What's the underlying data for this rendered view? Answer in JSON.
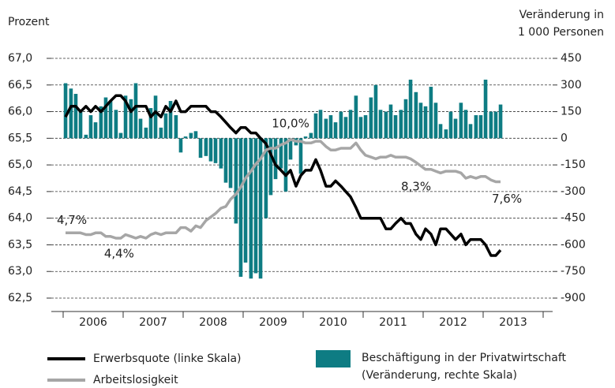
{
  "chart_data": {
    "type": "combo",
    "ylabel": "Prozent",
    "y2label": "Veränderung in 1 000 Personen",
    "categories": [
      "2006",
      "2007",
      "2008",
      "2009",
      "2010",
      "2011",
      "2012",
      "2013"
    ],
    "xlim": [
      2006,
      2014
    ],
    "xticks": [
      2006,
      2007,
      2008,
      2009,
      2010,
      2011,
      2012,
      2013,
      2014
    ],
    "ylim": [
      62.5,
      67.0
    ],
    "yticks": [
      {
        "value": 62.5,
        "label": "62,5"
      },
      {
        "value": 63.0,
        "label": "63,0"
      },
      {
        "value": 63.5,
        "label": "63,5"
      },
      {
        "value": 64.0,
        "label": "64,0"
      },
      {
        "value": 64.5,
        "label": "64,5"
      },
      {
        "value": 65.0,
        "label": "65,0"
      },
      {
        "value": 65.5,
        "label": "65,5"
      },
      {
        "value": 66.0,
        "label": "66,0"
      },
      {
        "value": 66.5,
        "label": "66,5"
      },
      {
        "value": 67.0,
        "label": "67,0"
      }
    ],
    "y2lim": [
      -900,
      450
    ],
    "y2ticks": [
      -900,
      -750,
      -600,
      -450,
      -300,
      -150,
      0,
      150,
      300,
      450
    ],
    "y3lim": [
      1,
      14.6
    ],
    "grid": true,
    "x": [
      2006.04,
      2006.13,
      2006.21,
      2006.29,
      2006.38,
      2006.46,
      2006.54,
      2006.63,
      2006.71,
      2006.79,
      2006.88,
      2006.96,
      2007.04,
      2007.13,
      2007.21,
      2007.29,
      2007.38,
      2007.46,
      2007.54,
      2007.63,
      2007.71,
      2007.79,
      2007.88,
      2007.96,
      2008.04,
      2008.13,
      2008.21,
      2008.29,
      2008.38,
      2008.46,
      2008.54,
      2008.63,
      2008.71,
      2008.79,
      2008.88,
      2008.96,
      2009.04,
      2009.13,
      2009.21,
      2009.29,
      2009.38,
      2009.46,
      2009.54,
      2009.63,
      2009.71,
      2009.79,
      2009.88,
      2009.96,
      2010.04,
      2010.13,
      2010.21,
      2010.29,
      2010.38,
      2010.46,
      2010.54,
      2010.63,
      2010.71,
      2010.79,
      2010.88,
      2010.96,
      2011.04,
      2011.13,
      2011.21,
      2011.29,
      2011.38,
      2011.46,
      2011.54,
      2011.63,
      2011.71,
      2011.79,
      2011.88,
      2011.96,
      2012.04,
      2012.13,
      2012.21,
      2012.29,
      2012.38,
      2012.46,
      2012.54,
      2012.63,
      2012.71,
      2012.79,
      2012.88,
      2012.96,
      2013.04,
      2013.13,
      2013.21,
      2013.29
    ],
    "series": [
      {
        "name": "Erwerbsquote (linke Skala)",
        "type": "line",
        "axis": "y",
        "color": "#000000",
        "values": [
          65.9,
          66.1,
          66.1,
          66.0,
          66.1,
          66.0,
          66.1,
          66.0,
          66.1,
          66.2,
          66.3,
          66.3,
          66.2,
          66.0,
          66.1,
          66.1,
          66.1,
          65.9,
          66.0,
          65.9,
          66.1,
          66.0,
          66.2,
          66.0,
          66.0,
          66.1,
          66.1,
          66.1,
          66.1,
          66.0,
          66.0,
          65.9,
          65.8,
          65.7,
          65.6,
          65.7,
          65.7,
          65.6,
          65.6,
          65.5,
          65.4,
          65.2,
          65.0,
          64.9,
          64.8,
          64.9,
          64.6,
          64.8,
          64.9,
          64.9,
          65.1,
          64.9,
          64.6,
          64.6,
          64.7,
          64.6,
          64.5,
          64.4,
          64.2,
          64.0,
          64.0,
          64.0,
          64.0,
          64.0,
          63.8,
          63.8,
          63.9,
          64.0,
          63.9,
          63.9,
          63.7,
          63.6,
          63.8,
          63.7,
          63.5,
          63.8,
          63.8,
          63.7,
          63.6,
          63.7,
          63.5,
          63.6,
          63.6,
          63.6,
          63.5,
          63.3,
          63.3,
          63.4
        ]
      },
      {
        "name": "Arbeitslosigkeit",
        "type": "line",
        "axis": "y3",
        "color": "#a6a6a6",
        "values": [
          4.7,
          4.7,
          4.7,
          4.7,
          4.6,
          4.6,
          4.7,
          4.7,
          4.5,
          4.5,
          4.4,
          4.4,
          4.6,
          4.5,
          4.4,
          4.5,
          4.4,
          4.6,
          4.7,
          4.6,
          4.7,
          4.7,
          4.7,
          5.0,
          5.0,
          4.8,
          5.1,
          5.0,
          5.4,
          5.6,
          5.8,
          6.1,
          6.2,
          6.6,
          6.9,
          7.3,
          7.8,
          8.2,
          8.6,
          8.9,
          9.4,
          9.5,
          9.5,
          9.7,
          9.8,
          10.0,
          9.9,
          9.9,
          9.8,
          9.8,
          9.9,
          9.9,
          9.6,
          9.4,
          9.4,
          9.5,
          9.5,
          9.5,
          9.8,
          9.4,
          9.1,
          9.0,
          8.9,
          9.0,
          9.0,
          9.1,
          9.0,
          9.0,
          9.0,
          8.9,
          8.7,
          8.5,
          8.3,
          8.3,
          8.2,
          8.1,
          8.2,
          8.2,
          8.2,
          8.1,
          7.8,
          7.9,
          7.8,
          7.9,
          7.9,
          7.7,
          7.6,
          7.6
        ],
        "value_labels": [
          "4,7%",
          null,
          null,
          null,
          null,
          null,
          null,
          null,
          null,
          null,
          "4,4%",
          null,
          null,
          null,
          null,
          null,
          null,
          null,
          null,
          null,
          null,
          null,
          null,
          null,
          null,
          null,
          null,
          null,
          null,
          null,
          null,
          null,
          null,
          null,
          null,
          null,
          null,
          null,
          null,
          null,
          null,
          null,
          null,
          null,
          null,
          "10,0%",
          null,
          null,
          null,
          null,
          null,
          null,
          null,
          null,
          null,
          null,
          null,
          null,
          null,
          null,
          null,
          null,
          null,
          null,
          null,
          null,
          null,
          null,
          null,
          null,
          null,
          null,
          "8,3%",
          null,
          null,
          null,
          null,
          null,
          null,
          null,
          null,
          null,
          null,
          null,
          null,
          null,
          null,
          "7,6%"
        ]
      },
      {
        "name": "Beschäftigung in der Privatwirtschaft (Veränderung, rechte Skala)",
        "type": "bar",
        "axis": "y2",
        "color": "#0e7c83",
        "values": [
          310,
          280,
          250,
          150,
          20,
          130,
          90,
          180,
          230,
          210,
          160,
          30,
          240,
          220,
          310,
          110,
          60,
          170,
          240,
          60,
          140,
          210,
          130,
          -80,
          10,
          30,
          40,
          -110,
          -100,
          -130,
          -140,
          -170,
          -250,
          -280,
          -480,
          -780,
          -700,
          -790,
          -760,
          -790,
          -450,
          -320,
          -230,
          -170,
          -300,
          -120,
          -40,
          -200,
          10,
          30,
          140,
          160,
          110,
          130,
          90,
          150,
          120,
          160,
          240,
          120,
          130,
          230,
          300,
          160,
          150,
          190,
          130,
          160,
          220,
          330,
          260,
          200,
          180,
          290,
          200,
          80,
          50,
          150,
          110,
          200,
          160,
          80,
          130,
          130,
          330,
          150,
          150,
          190
        ]
      }
    ]
  }
}
